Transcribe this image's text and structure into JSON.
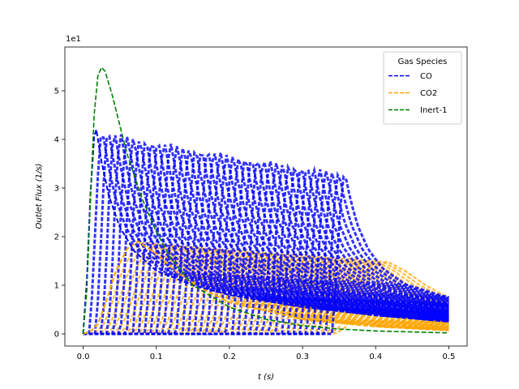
{
  "chart_data": {
    "type": "line",
    "title": "",
    "xlabel": "t (s)",
    "ylabel": "Outlet Flux (1/s)",
    "y_offset_label": "1e1",
    "xlim": [
      -0.025,
      0.525
    ],
    "ylim": [
      -0.25,
      5.9
    ],
    "x_ticks": [
      0.0,
      0.1,
      0.2,
      0.3,
      0.4,
      0.5
    ],
    "x_tick_labels": [
      "0.0",
      "0.1",
      "0.2",
      "0.3",
      "0.4",
      "0.5"
    ],
    "y_ticks": [
      0,
      1,
      2,
      3,
      4,
      5
    ],
    "y_tick_labels": [
      "0",
      "1",
      "2",
      "3",
      "4",
      "5"
    ],
    "grid": false,
    "legend": {
      "title": "Gas Species",
      "placement": "top-right"
    },
    "line_style": "dashed",
    "series": [
      {
        "name": "CO",
        "color": "#0000ff",
        "x": [
          0.0,
          0.005,
          0.01,
          0.015,
          0.018,
          0.025,
          0.035,
          0.05,
          0.07,
          0.1,
          0.15,
          0.2,
          0.3,
          0.4,
          0.5
        ],
        "values": [
          0.0,
          1.1,
          2.9,
          4.05,
          4.2,
          3.55,
          2.85,
          2.2,
          1.7,
          1.3,
          1.0,
          0.8,
          0.55,
          0.38,
          0.25
        ]
      },
      {
        "name": "CO2",
        "color": "#ffa500",
        "x": [
          0.0,
          0.01,
          0.02,
          0.03,
          0.045,
          0.06,
          0.075,
          0.1,
          0.13,
          0.16,
          0.2,
          0.3,
          0.4,
          0.5
        ],
        "values": [
          0.0,
          0.05,
          0.2,
          0.6,
          1.3,
          1.75,
          1.9,
          1.65,
          1.25,
          0.95,
          0.65,
          0.3,
          0.15,
          0.07
        ]
      },
      {
        "name": "Inert-1",
        "color": "#008000",
        "x": [
          0.0,
          0.005,
          0.01,
          0.015,
          0.02,
          0.025,
          0.03,
          0.04,
          0.05,
          0.06,
          0.08,
          0.1,
          0.12,
          0.15,
          0.2,
          0.25,
          0.3,
          0.35,
          0.4,
          0.5
        ],
        "values": [
          0.0,
          0.9,
          2.8,
          4.5,
          5.3,
          5.48,
          5.4,
          4.9,
          4.3,
          3.7,
          2.8,
          2.1,
          1.55,
          1.0,
          0.55,
          0.3,
          0.17,
          0.1,
          0.06,
          0.02
        ]
      }
    ]
  }
}
